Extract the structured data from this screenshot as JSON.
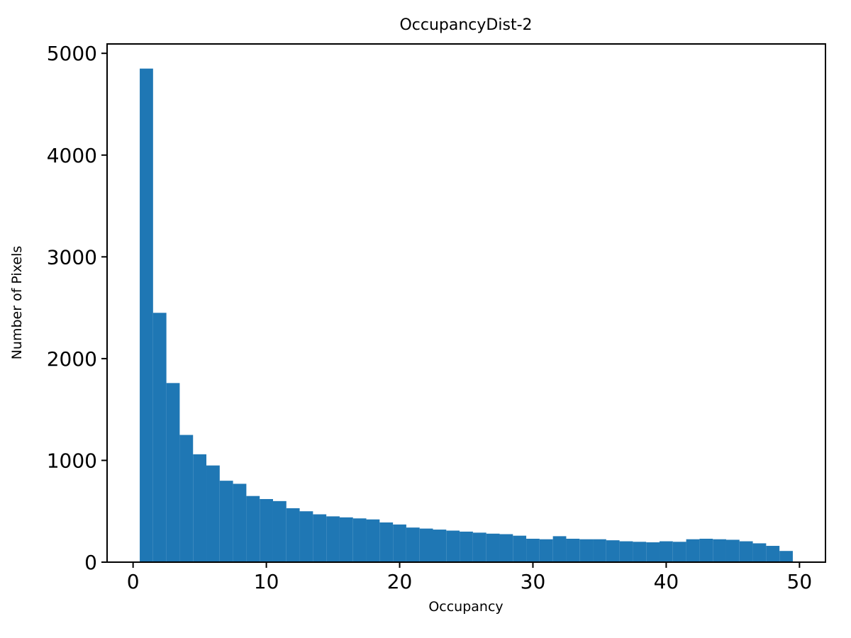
{
  "title": "OccupancyDist-2",
  "chart_data": {
    "type": "bar",
    "subtype": "histogram",
    "title": "OccupancyDist-2",
    "xlabel": "Occupancy",
    "ylabel": "Number of Pixels",
    "bin_start": 0.5,
    "bin_width": 1,
    "values": [
      4850,
      2450,
      1760,
      1250,
      1060,
      950,
      800,
      770,
      650,
      620,
      600,
      530,
      500,
      470,
      450,
      440,
      430,
      420,
      390,
      370,
      340,
      330,
      320,
      310,
      300,
      290,
      280,
      275,
      260,
      230,
      225,
      255,
      230,
      225,
      225,
      215,
      205,
      200,
      195,
      205,
      200,
      225,
      230,
      225,
      220,
      205,
      185,
      160,
      110
    ],
    "xlim": [
      -1.95,
      51.95
    ],
    "ylim": [
      0,
      5092
    ],
    "xticks": [
      0,
      10,
      20,
      30,
      40,
      50
    ],
    "yticks": [
      0,
      1000,
      2000,
      3000,
      4000,
      5000
    ],
    "bar_color": "#1f77b4",
    "axis_color": "#000000",
    "grid": false,
    "legend": null
  }
}
